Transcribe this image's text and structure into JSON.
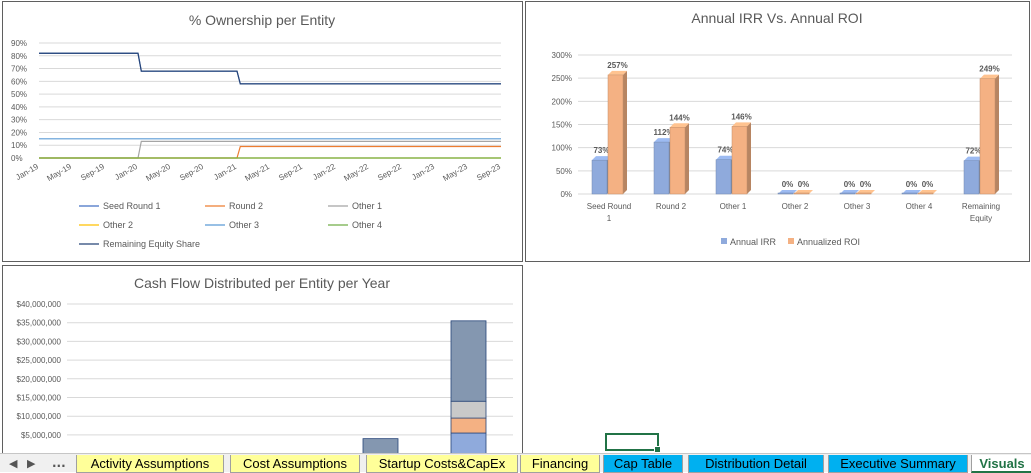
{
  "chart_data": [
    {
      "type": "line",
      "title": "% Ownership per Entity",
      "x": [
        "Jan-19",
        "May-19",
        "Sep-19",
        "Jan-20",
        "May-20",
        "Sep-20",
        "Jan-21",
        "May-21",
        "Sep-21",
        "Jan-22",
        "May-22",
        "Sep-22",
        "Jan-23",
        "May-23",
        "Sep-23"
      ],
      "yticks": [
        "0%",
        "10%",
        "20%",
        "30%",
        "40%",
        "50%",
        "60%",
        "70%",
        "80%",
        "90%"
      ],
      "ylim": [
        0,
        90
      ],
      "grid": true,
      "legend_position": "bottom",
      "series": [
        {
          "name": "Seed Round 1",
          "color": "#4472c4",
          "values": [
            82,
            82,
            82,
            82,
            68,
            68,
            68,
            58,
            58,
            58,
            58,
            58,
            58,
            58,
            58
          ]
        },
        {
          "name": "Round 2",
          "color": "#ed7d31",
          "values": [
            0,
            0,
            0,
            0,
            0,
            0,
            0,
            9,
            9,
            9,
            9,
            9,
            9,
            9,
            9
          ]
        },
        {
          "name": "Other 1",
          "color": "#a5a5a5",
          "values": [
            0,
            0,
            0,
            0,
            13,
            13,
            13,
            13,
            13,
            13,
            13,
            13,
            13,
            13,
            13
          ]
        },
        {
          "name": "Other 2",
          "color": "#ffc000",
          "values": [
            0,
            0,
            0,
            0,
            0,
            0,
            0,
            0,
            0,
            0,
            0,
            0,
            0,
            0,
            0
          ]
        },
        {
          "name": "Other 3",
          "color": "#5b9bd5",
          "values": [
            15,
            15,
            15,
            15,
            15,
            15,
            15,
            15,
            15,
            15,
            15,
            15,
            15,
            15,
            15
          ]
        },
        {
          "name": "Other 4",
          "color": "#70ad47",
          "values": [
            0,
            0,
            0,
            0,
            0,
            0,
            0,
            0,
            0,
            0,
            0,
            0,
            0,
            0,
            0
          ]
        },
        {
          "name": "Remaining Equity Share",
          "color": "#264478",
          "values": [
            82,
            82,
            82,
            82,
            68,
            68,
            68,
            58,
            58,
            58,
            58,
            58,
            58,
            58,
            58
          ]
        }
      ]
    },
    {
      "type": "bar",
      "title": "Annual IRR Vs. Annual ROI",
      "categories": [
        "Seed Round 1",
        "Round 2",
        "Other 1",
        "Other 2",
        "Other 3",
        "Other 4",
        "Remaining Equity"
      ],
      "yticks": [
        "0%",
        "50%",
        "100%",
        "150%",
        "200%",
        "250%",
        "300%"
      ],
      "ylim": [
        0,
        300
      ],
      "grid": true,
      "legend_position": "bottom",
      "series": [
        {
          "name": "Annual IRR",
          "color": "#8faadc",
          "values": [
            73,
            112,
            74,
            0,
            0,
            0,
            72
          ],
          "labels": [
            "73%",
            "112%",
            "74%",
            "0%",
            "0%",
            "0%",
            "72%"
          ]
        },
        {
          "name": "Annualized ROI",
          "color": "#f4b183",
          "values": [
            257,
            144,
            146,
            0,
            0,
            0,
            249
          ],
          "labels": [
            "257%",
            "144%",
            "146%",
            "0%",
            "0%",
            "0%",
            "249%"
          ]
        }
      ]
    },
    {
      "type": "bar",
      "title": "Cash Flow Distributed per Entity per Year",
      "yticks": [
        "$5,000,000",
        "$10,000,000",
        "$15,000,000",
        "$20,000,000",
        "$25,000,000",
        "$30,000,000",
        "$35,000,000",
        "$40,000,000"
      ],
      "ylim": [
        0,
        40000000
      ],
      "grid": true,
      "stacks": [
        {
          "segments": [
            {
              "value": 4000000,
              "color": "#8497b0"
            }
          ]
        },
        {
          "segments": [
            {
              "value": 5500000,
              "color": "#8faadc"
            },
            {
              "value": 4000000,
              "color": "#f4b183"
            },
            {
              "value": 4500000,
              "color": "#c9c9c9"
            },
            {
              "value": 21500000,
              "color": "#8497b0"
            }
          ]
        }
      ]
    }
  ],
  "sheet_tabs": {
    "nav_prev": "◀",
    "nav_next": "▶",
    "nav_more": "...",
    "tabs": [
      {
        "label": "Activity Assumptions",
        "color": "yellow"
      },
      {
        "label": "Cost Assumptions",
        "color": "yellow"
      },
      {
        "label": "Startup Costs&CapEx",
        "color": "yellow"
      },
      {
        "label": "Financing",
        "color": "yellow"
      },
      {
        "label": "Cap Table",
        "color": "blue"
      },
      {
        "label": "Distribution Detail",
        "color": "blue"
      },
      {
        "label": "Executive Summary",
        "color": "blue"
      },
      {
        "label": "Visuals",
        "color": "active"
      }
    ]
  }
}
